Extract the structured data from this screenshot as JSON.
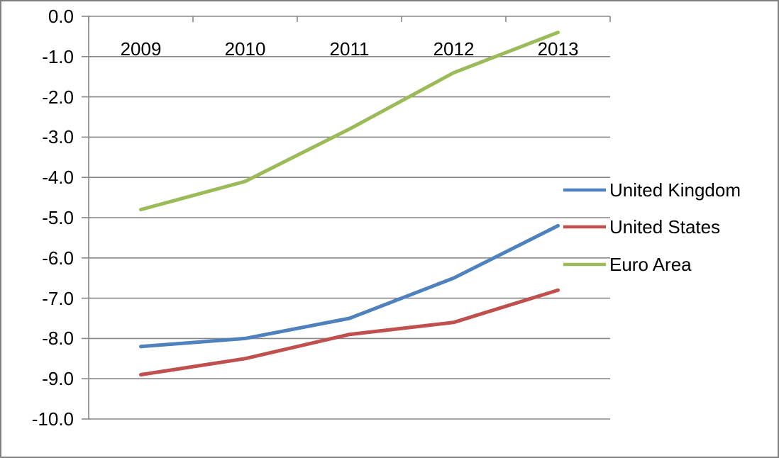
{
  "figure": {
    "background": "#ffffff",
    "border_color": "#808080"
  },
  "chart_data": {
    "type": "line",
    "title": "",
    "xlabel": "",
    "ylabel": "",
    "categories": [
      "2009",
      "2010",
      "2011",
      "2012",
      "2013"
    ],
    "series": [
      {
        "name": "United Kingdom",
        "color": "#4F81BD",
        "values": [
          -8.2,
          -8.0,
          -7.5,
          -6.5,
          -5.2
        ]
      },
      {
        "name": "United States",
        "color": "#C0504D",
        "values": [
          -8.9,
          -8.5,
          -7.9,
          -7.6,
          -6.8
        ]
      },
      {
        "name": "Euro Area",
        "color": "#9BBB59",
        "values": [
          -4.8,
          -4.1,
          -2.8,
          -1.4,
          -0.4
        ]
      }
    ],
    "ylim": [
      -10.0,
      0.0
    ],
    "ytick_step": 1.0,
    "ytick_labels": [
      "0.0",
      "-1.0",
      "-2.0",
      "-3.0",
      "-4.0",
      "-5.0",
      "-6.0",
      "-7.0",
      "-8.0",
      "-9.0",
      "-10.0"
    ],
    "grid": true,
    "gridline_color": "#878787",
    "axis_color": "#878787",
    "text_color": "#000000",
    "legend_position": "right",
    "x_labels_position": "below-zero-axis"
  }
}
